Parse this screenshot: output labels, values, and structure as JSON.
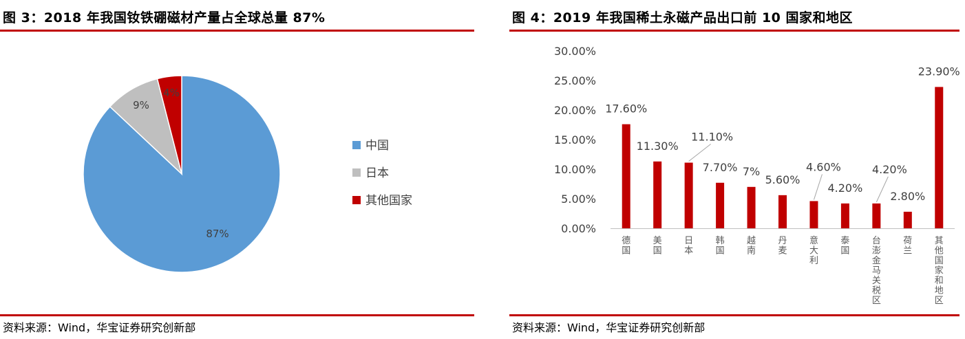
{
  "left": {
    "title": "图 3：2018 年我国钕铁硼磁材产量占全球总量 87%",
    "source": "资料来源：Wind，华宝证券研究创新部"
  },
  "right": {
    "title": "图 4：2019 年我国稀土永磁产品出口前 10 国家和地区",
    "source": "资料来源：Wind，华宝证券研究创新部"
  },
  "colors": {
    "accent_red": "#c00000",
    "pie_blue": "#5b9bd5",
    "pie_gray": "#bfbfbf",
    "pie_red": "#c00000"
  },
  "chart_data": [
    {
      "type": "pie",
      "title": "",
      "categories": [
        "中国",
        "日本",
        "其他国家"
      ],
      "values": [
        87,
        9,
        4
      ],
      "data_labels": [
        "87%",
        "9%",
        "4%"
      ],
      "colors": [
        "#5b9bd5",
        "#bfbfbf",
        "#c00000"
      ],
      "legend": "right"
    },
    {
      "type": "bar",
      "title": "",
      "categories": [
        "德国",
        "美国",
        "日本",
        "韩国",
        "越南",
        "丹麦",
        "意大利",
        "泰国",
        "台澎金马关税区",
        "荷兰",
        "其他国家和地区"
      ],
      "values": [
        17.6,
        11.3,
        11.1,
        7.7,
        7.0,
        5.6,
        4.6,
        4.2,
        4.2,
        2.8,
        23.9
      ],
      "data_labels": [
        "17.60%",
        "11.30%",
        "11.10%",
        "7.70%",
        "7%",
        "5.60%",
        "4.60%",
        "4.20%",
        "4.20%",
        "2.80%",
        "23.90%"
      ],
      "y_ticks": [
        "0.00%",
        "5.00%",
        "10.00%",
        "15.00%",
        "20.00%",
        "25.00%",
        "30.00%"
      ],
      "ylim": [
        0,
        30
      ],
      "grid": false,
      "bar_color": "#c00000"
    }
  ]
}
